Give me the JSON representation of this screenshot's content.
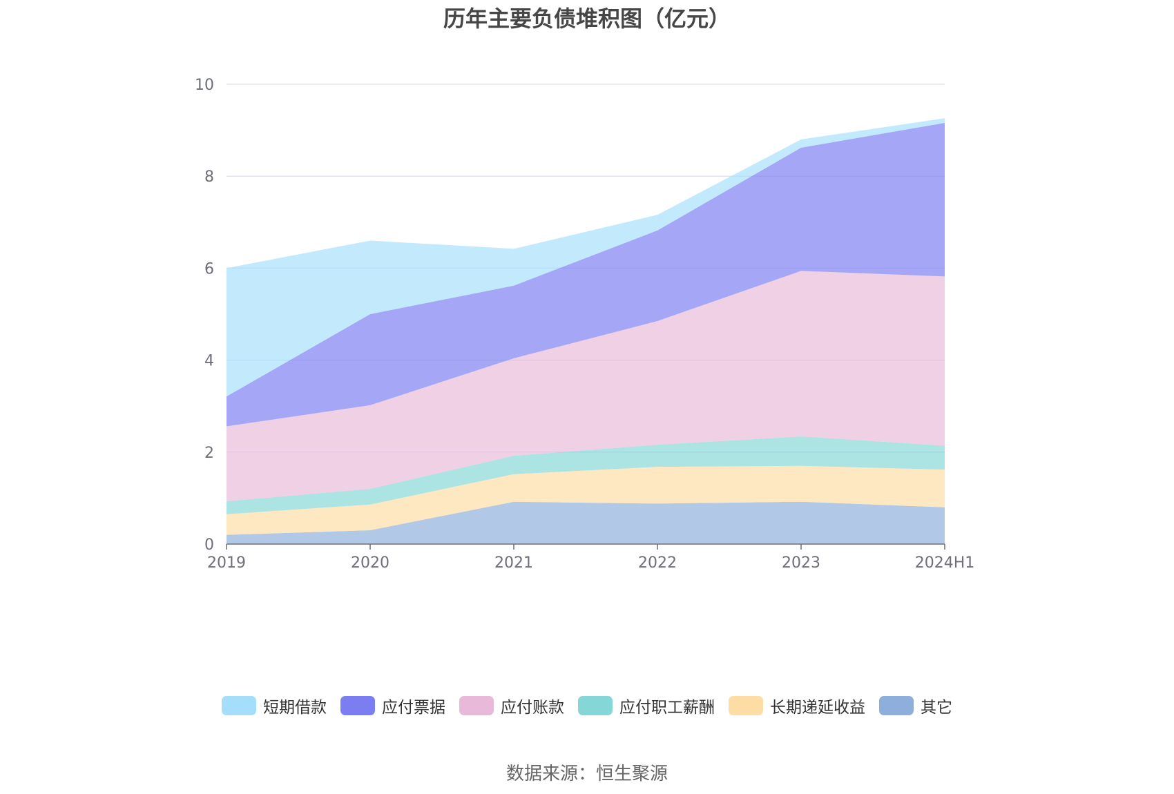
{
  "chart_data": {
    "type": "area",
    "stacked": true,
    "title": "历年主要负债堆积图（亿元）",
    "categories": [
      "2019",
      "2020",
      "2021",
      "2022",
      "2023",
      "2024H1"
    ],
    "y_ticks": [
      "0",
      "2",
      "4",
      "6",
      "8",
      "10"
    ],
    "ylim": [
      0,
      10
    ],
    "grid": true,
    "legend_position": "bottom",
    "series": [
      {
        "name": "其它",
        "values": [
          0.2,
          0.3,
          0.92,
          0.88,
          0.92,
          0.8
        ],
        "color": "#8eaedc"
      },
      {
        "name": "长期递延收益",
        "values": [
          0.45,
          0.56,
          0.6,
          0.8,
          0.78,
          0.82
        ],
        "color": "#fddda3"
      },
      {
        "name": "应付职工薪酬",
        "values": [
          0.28,
          0.34,
          0.4,
          0.48,
          0.64,
          0.52
        ],
        "color": "#85d6d6"
      },
      {
        "name": "应付账款",
        "values": [
          1.63,
          1.82,
          2.12,
          2.69,
          3.6,
          3.68
        ],
        "color": "#e8b9d8"
      },
      {
        "name": "应付票据",
        "values": [
          0.65,
          1.98,
          1.58,
          1.97,
          2.68,
          3.34
        ],
        "color": "#7b7ef1"
      },
      {
        "name": "短期借款",
        "values": [
          2.79,
          1.6,
          0.8,
          0.34,
          0.18,
          0.1
        ],
        "color": "#a5defa"
      }
    ],
    "legend_order": [
      "短期借款",
      "应付票据",
      "应付账款",
      "应付职工薪酬",
      "长期递延收益",
      "其它"
    ]
  },
  "source_note": "数据来源：恒生聚源"
}
